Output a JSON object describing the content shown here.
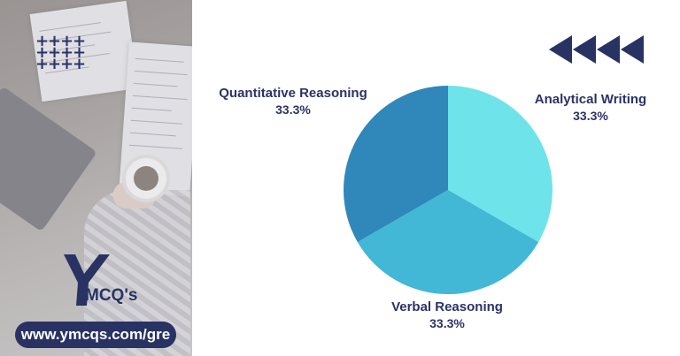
{
  "site_url": "www.ymcqs.com/gre",
  "logo_text": "YMCQ's",
  "colors": {
    "navy": "#283364",
    "slice_aw": "#6ee3ea",
    "slice_vr": "#42b7d6",
    "slice_qr": "#2f88b9"
  },
  "chart_data": {
    "type": "pie",
    "slices": [
      {
        "label": "Analytical Writing",
        "value": 33.3,
        "display": "33.3%",
        "color": "#6ee3ea"
      },
      {
        "label": "Verbal Reasoning",
        "value": 33.3,
        "display": "33.3%",
        "color": "#42b7d6"
      },
      {
        "label": "Quantitative Reasoning",
        "value": 33.3,
        "display": "33.3%",
        "color": "#2f88b9"
      }
    ],
    "start_angle_deg": 0,
    "direction": "clockwise"
  }
}
